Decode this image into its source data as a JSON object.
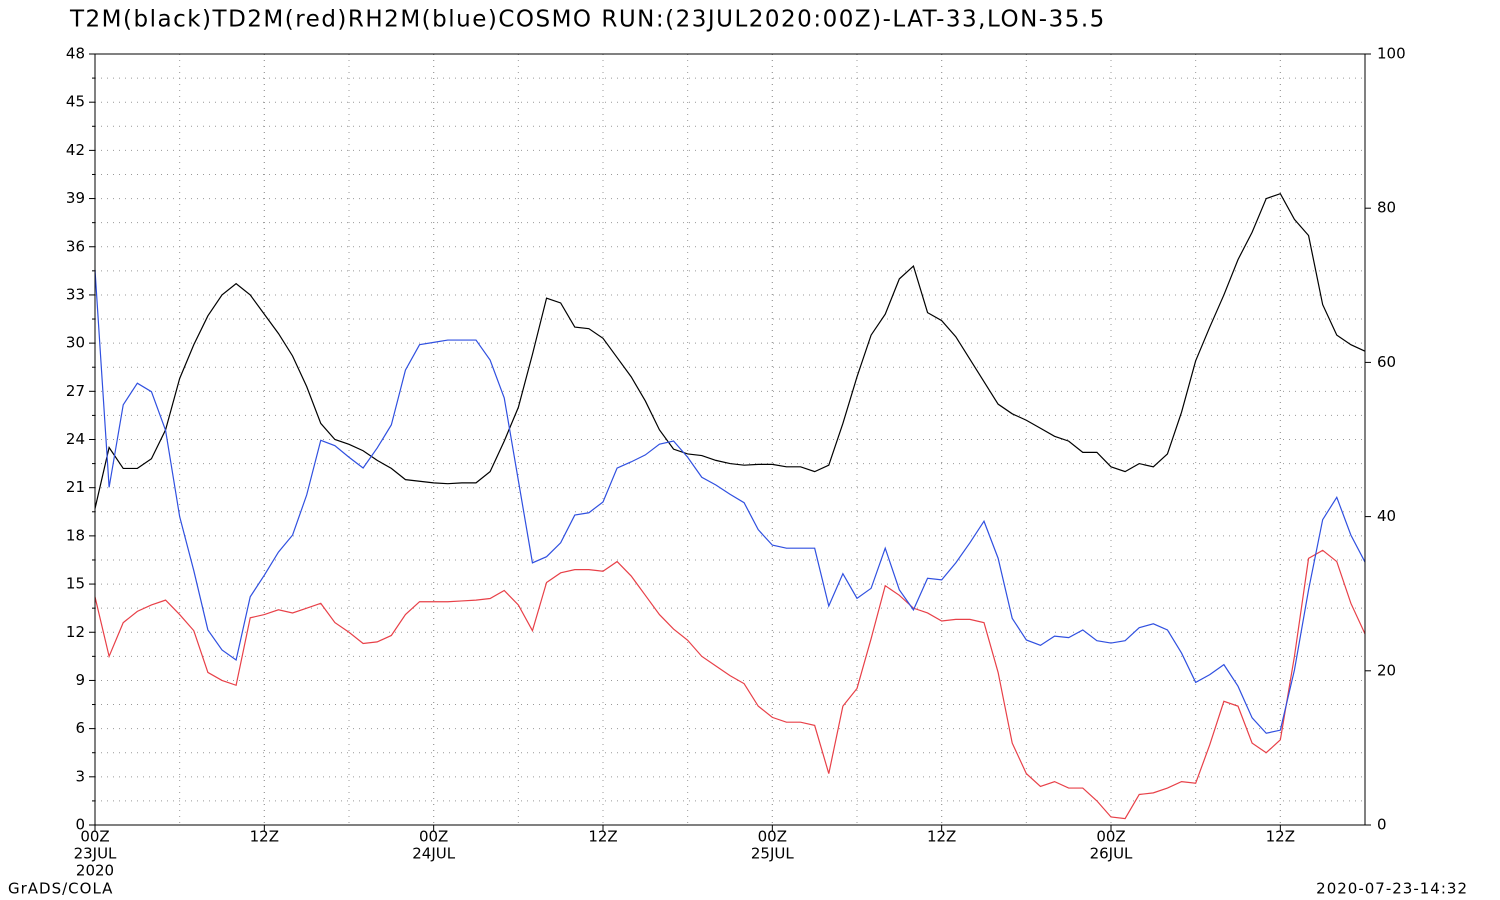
{
  "chart_data": {
    "type": "line",
    "title": "T2M(black)TD2M(red)RH2M(blue)COSMO RUN:(23JUL2020:00Z)-LAT-33,LON-35.5",
    "footer_left": "GrADS/COLA",
    "footer_right": "2020-07-23-14:32",
    "x": [
      0,
      1,
      2,
      3,
      4,
      5,
      6,
      7,
      8,
      9,
      10,
      11,
      12,
      13,
      14,
      15,
      16,
      17,
      18,
      19,
      20,
      21,
      22,
      23,
      24,
      25,
      26,
      27,
      28,
      29,
      30,
      31,
      32,
      33,
      34,
      35,
      36,
      37,
      38,
      39,
      40,
      41,
      42,
      43,
      44,
      45,
      46,
      47,
      48,
      49,
      50,
      51,
      52,
      53,
      54,
      55,
      56,
      57,
      58,
      59,
      60,
      61,
      62,
      63,
      64,
      65,
      66,
      67,
      68,
      69,
      70,
      71,
      72,
      73,
      74,
      75,
      76,
      77,
      78,
      79,
      80,
      81,
      82,
      83,
      84,
      85,
      86,
      87,
      88,
      89,
      90
    ],
    "xlim": [
      0,
      90
    ],
    "xticks": [
      {
        "value": 0,
        "label": "00Z"
      },
      {
        "value": 12,
        "label": "12Z"
      },
      {
        "value": 24,
        "label": "00Z"
      },
      {
        "value": 36,
        "label": "12Z"
      },
      {
        "value": 48,
        "label": "00Z"
      },
      {
        "value": 60,
        "label": "12Z"
      },
      {
        "value": 72,
        "label": "00Z"
      },
      {
        "value": 84,
        "label": "12Z"
      }
    ],
    "date_labels": [
      {
        "value": 0,
        "label": "23JUL"
      },
      {
        "value": 24,
        "label": "24JUL"
      },
      {
        "value": 48,
        "label": "25JUL"
      },
      {
        "value": 72,
        "label": "26JUL"
      }
    ],
    "year_label": {
      "value": 0,
      "label": "2020"
    },
    "ylim": [
      0,
      48
    ],
    "yticks": [
      0,
      3,
      6,
      9,
      12,
      15,
      18,
      21,
      24,
      27,
      30,
      33,
      36,
      39,
      42,
      45,
      48
    ],
    "y2lim": [
      0,
      100
    ],
    "y2ticks": [
      0,
      20,
      40,
      60,
      80,
      100
    ],
    "grid": true,
    "series": [
      {
        "color": "#000000",
        "values": [
          19.7,
          23.5,
          22.2,
          22.2,
          22.8,
          24.6,
          27.8,
          29.9,
          31.7,
          33.0,
          33.7,
          33.0,
          31.8,
          30.6,
          29.2,
          27.3,
          25.0,
          24.0,
          23.7,
          23.3,
          22.7,
          22.2,
          21.5,
          21.4,
          21.3,
          21.25,
          21.3,
          21.3,
          22.0,
          23.9,
          26.0,
          29.3,
          32.8,
          32.5,
          31.0,
          30.9,
          30.3,
          29.1,
          27.9,
          26.4,
          24.6,
          23.4,
          23.1,
          23.0,
          22.7,
          22.5,
          22.4,
          22.45,
          22.45,
          22.3,
          22.3,
          22.0,
          22.4,
          25.0,
          27.9,
          30.5,
          31.8,
          34.0,
          34.8,
          31.9,
          31.4,
          30.4,
          29.0,
          27.6,
          26.2,
          25.6,
          25.2,
          24.7,
          24.2,
          23.9,
          23.2,
          23.2,
          22.3,
          22.0,
          22.5,
          22.3,
          23.1,
          25.7,
          28.9,
          31.0,
          33.0,
          35.2,
          36.9,
          39.0,
          39.3,
          37.7,
          36.7,
          32.4,
          30.5,
          29.9,
          29.5
        ]
      },
      {
        "color": "#e84048",
        "values": [
          14.2,
          10.5,
          12.6,
          13.3,
          13.7,
          14.0,
          13.1,
          12.1,
          9.5,
          9.0,
          8.7,
          12.9,
          13.1,
          13.4,
          13.2,
          13.5,
          13.8,
          12.6,
          12.0,
          11.3,
          11.4,
          11.8,
          13.1,
          13.9,
          13.9,
          13.9,
          13.95,
          14.0,
          14.1,
          14.6,
          13.7,
          12.1,
          15.1,
          15.7,
          15.9,
          15.9,
          15.8,
          16.4,
          15.5,
          14.3,
          13.1,
          12.2,
          11.5,
          10.5,
          9.9,
          9.3,
          8.8,
          7.4,
          6.7,
          6.4,
          6.4,
          6.2,
          3.2,
          7.4,
          8.5,
          11.6,
          14.9,
          14.3,
          13.5,
          13.2,
          12.7,
          12.8,
          12.8,
          12.6,
          9.5,
          5.1,
          3.2,
          2.4,
          2.7,
          2.3,
          2.3,
          1.5,
          0.5,
          0.4,
          1.9,
          2.0,
          2.3,
          2.7,
          2.6,
          5.0,
          7.7,
          7.4,
          5.1,
          4.5,
          5.3,
          10.5,
          16.6,
          17.1,
          16.4,
          13.8,
          11.9
        ]
      },
      {
        "color": "#3050e0",
        "axis": "y2",
        "values": [
          72,
          43.8,
          54.5,
          57.3,
          56.2,
          51.2,
          40,
          33,
          25.3,
          22.7,
          21.4,
          29.6,
          32.4,
          35.4,
          37.6,
          42.8,
          49.9,
          49.2,
          47.7,
          46.3,
          48.9,
          51.9,
          59,
          62.3,
          62.6,
          62.9,
          62.9,
          62.9,
          60.3,
          55.4,
          44.7,
          34,
          34.8,
          36.6,
          40.2,
          40.5,
          41.9,
          46.3,
          47.1,
          48,
          49.4,
          49.8,
          47.7,
          45.1,
          44.1,
          42.9,
          41.8,
          38.3,
          36.3,
          35.9,
          35.9,
          35.9,
          28.4,
          32.6,
          29.4,
          30.7,
          35.9,
          30.5,
          27.9,
          32,
          31.8,
          34,
          36.6,
          39.4,
          34.6,
          26.8,
          24,
          23.3,
          24.5,
          24.3,
          25.3,
          23.9,
          23.6,
          23.9,
          25.6,
          26.1,
          25.3,
          22.3,
          18.5,
          19.5,
          20.8,
          18,
          13.9,
          11.9,
          12.3,
          20.1,
          30.5,
          39.6,
          42.5,
          37.6,
          34.1
        ]
      }
    ]
  }
}
